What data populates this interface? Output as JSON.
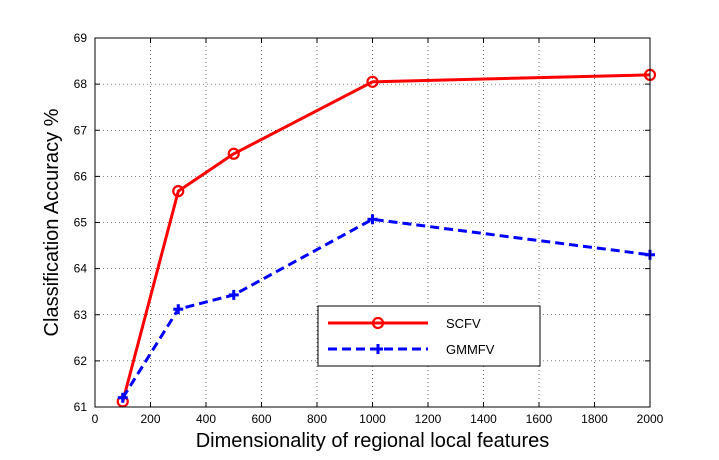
{
  "chart_data": {
    "type": "line",
    "xlabel": "Dimensionality of regional local features",
    "ylabel": "Classification Accuracy %",
    "xlim": [
      0,
      2000
    ],
    "ylim": [
      61,
      69
    ],
    "xticks": [
      0,
      200,
      400,
      600,
      800,
      1000,
      1200,
      1400,
      1600,
      1800,
      2000
    ],
    "yticks": [
      61,
      62,
      63,
      64,
      65,
      66,
      67,
      68,
      69
    ],
    "grid": true,
    "legend_position": "lower-center",
    "series": [
      {
        "name": "SCFV",
        "color": "#ff0000",
        "line_style": "solid",
        "marker": "circle",
        "x": [
          100,
          300,
          500,
          1000,
          2000
        ],
        "y": [
          61.12,
          65.68,
          66.49,
          68.05,
          68.2
        ]
      },
      {
        "name": "GMMFV",
        "color": "#0000ff",
        "line_style": "dashed",
        "marker": "plus",
        "x": [
          100,
          300,
          500,
          1000,
          2000
        ],
        "y": [
          61.2,
          63.12,
          63.43,
          65.07,
          64.3
        ]
      }
    ]
  }
}
